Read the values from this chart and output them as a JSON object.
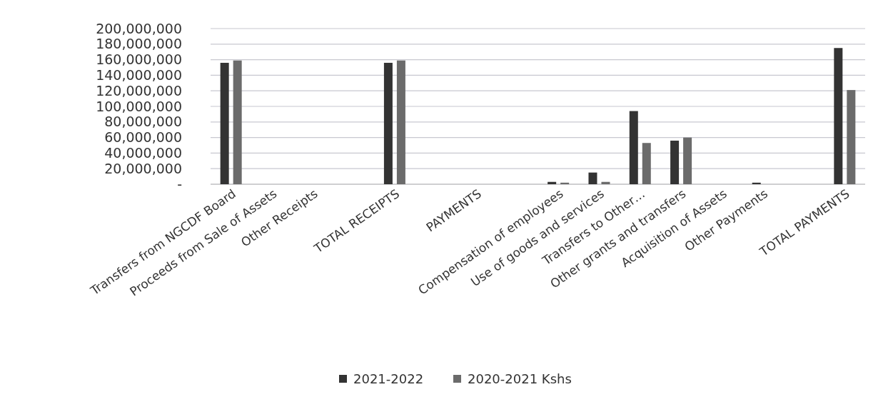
{
  "chart_data": {
    "type": "bar",
    "categories": [
      "Transfers from NGCDF Board",
      "Proceeds from Sale of Assets",
      "Other Receipts",
      null,
      "TOTAL RECEIPTS",
      null,
      "PAYMENTS",
      null,
      "Compensation of employees",
      "Use of goods and services",
      "Transfers to Other…",
      "Other grants and transfers",
      "Acquisition of Assets",
      "Other Payments",
      null,
      "TOTAL PAYMENTS"
    ],
    "series": [
      {
        "name": "2021-2022",
        "color": "#333333",
        "values": [
          156000000,
          0,
          0,
          null,
          156000000,
          null,
          0,
          null,
          3000000,
          15000000,
          94000000,
          56000000,
          0,
          2000000,
          null,
          175000000
        ]
      },
      {
        "name": "2020-2021 Kshs",
        "color": "#6b6b6b",
        "values": [
          159000000,
          0,
          0,
          null,
          159000000,
          null,
          0,
          null,
          2000000,
          3000000,
          53000000,
          60000000,
          0,
          0,
          null,
          121000000
        ]
      }
    ],
    "ylim": [
      0,
      200000000
    ],
    "yticks": [
      {
        "value": 0,
        "label": "-"
      },
      {
        "value": 20000000,
        "label": "20,000,000"
      },
      {
        "value": 40000000,
        "label": "40,000,000"
      },
      {
        "value": 60000000,
        "label": "60,000,000"
      },
      {
        "value": 80000000,
        "label": "80,000,000"
      },
      {
        "value": 100000000,
        "label": "100,000,000"
      },
      {
        "value": 120000000,
        "label": "120,000,000"
      },
      {
        "value": 140000000,
        "label": "140,000,000"
      },
      {
        "value": 160000000,
        "label": "160,000,000"
      },
      {
        "value": 180000000,
        "label": "180,000,000"
      },
      {
        "value": 200000000,
        "label": "200,000,000"
      }
    ],
    "grid": "y",
    "legend": "bottom"
  }
}
